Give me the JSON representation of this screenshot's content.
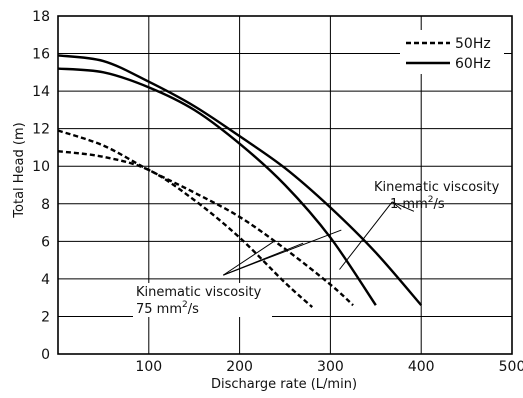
{
  "chart_data": {
    "type": "line",
    "xlabel": "Discharge rate (L/min)",
    "ylabel": "Total Head (m)",
    "xlim": [
      0,
      500
    ],
    "ylim": [
      0,
      18
    ],
    "xticks": [
      100,
      200,
      300,
      400,
      500
    ],
    "yticks": [
      0,
      2,
      4,
      6,
      8,
      10,
      12,
      14,
      16,
      18
    ],
    "grid": true,
    "legend_position": "top-right",
    "legend": [
      {
        "label": "50Hz",
        "style": "dashed"
      },
      {
        "label": "60Hz",
        "style": "solid"
      }
    ],
    "series": [
      {
        "legend": "50Hz",
        "style": "dashed",
        "x": [
          0,
          50,
          100,
          150,
          200,
          250,
          280
        ],
        "y": [
          10.8,
          10.5,
          9.8,
          8.2,
          6.2,
          3.8,
          2.5
        ]
      },
      {
        "legend": "50Hz",
        "style": "dashed",
        "x": [
          0,
          50,
          100,
          150,
          200,
          250,
          300,
          325
        ],
        "y": [
          11.9,
          11.1,
          9.8,
          8.6,
          7.3,
          5.6,
          3.7,
          2.6
        ]
      },
      {
        "legend": "60Hz",
        "style": "solid",
        "x": [
          0,
          50,
          100,
          150,
          200,
          250,
          300,
          350
        ],
        "y": [
          15.2,
          15.0,
          14.2,
          13.0,
          11.2,
          9.0,
          6.2,
          2.6
        ]
      },
      {
        "legend": "60Hz",
        "style": "solid",
        "x": [
          0,
          50,
          100,
          150,
          200,
          250,
          300,
          350,
          400
        ],
        "y": [
          15.9,
          15.6,
          14.5,
          13.2,
          11.6,
          9.9,
          7.8,
          5.4,
          2.6
        ]
      }
    ],
    "annotations": [
      {
        "line1": "Kinematic viscosity",
        "line2": "1 mm",
        "sup": "2",
        "unit": "/s",
        "leaders": [
          [
            [
              310,
              4.5
            ],
            [
              368,
              8.1
            ]
          ],
          [
            [
              368,
              8.1
            ],
            [
              378,
              7.7
            ]
          ],
          [
            [
              368,
              8.1
            ],
            [
              392,
              7.6
            ]
          ]
        ]
      },
      {
        "line1": "Kinematic viscosity",
        "line2": "75 mm",
        "sup": "2",
        "unit": "/s",
        "leaders": [
          [
            [
              182,
              4.2
            ],
            [
              238,
              6.0
            ]
          ],
          [
            [
              182,
              4.2
            ],
            [
              270,
              5.9
            ]
          ],
          [
            [
              182,
              4.2
            ],
            [
              312,
              6.6
            ]
          ]
        ]
      }
    ]
  }
}
